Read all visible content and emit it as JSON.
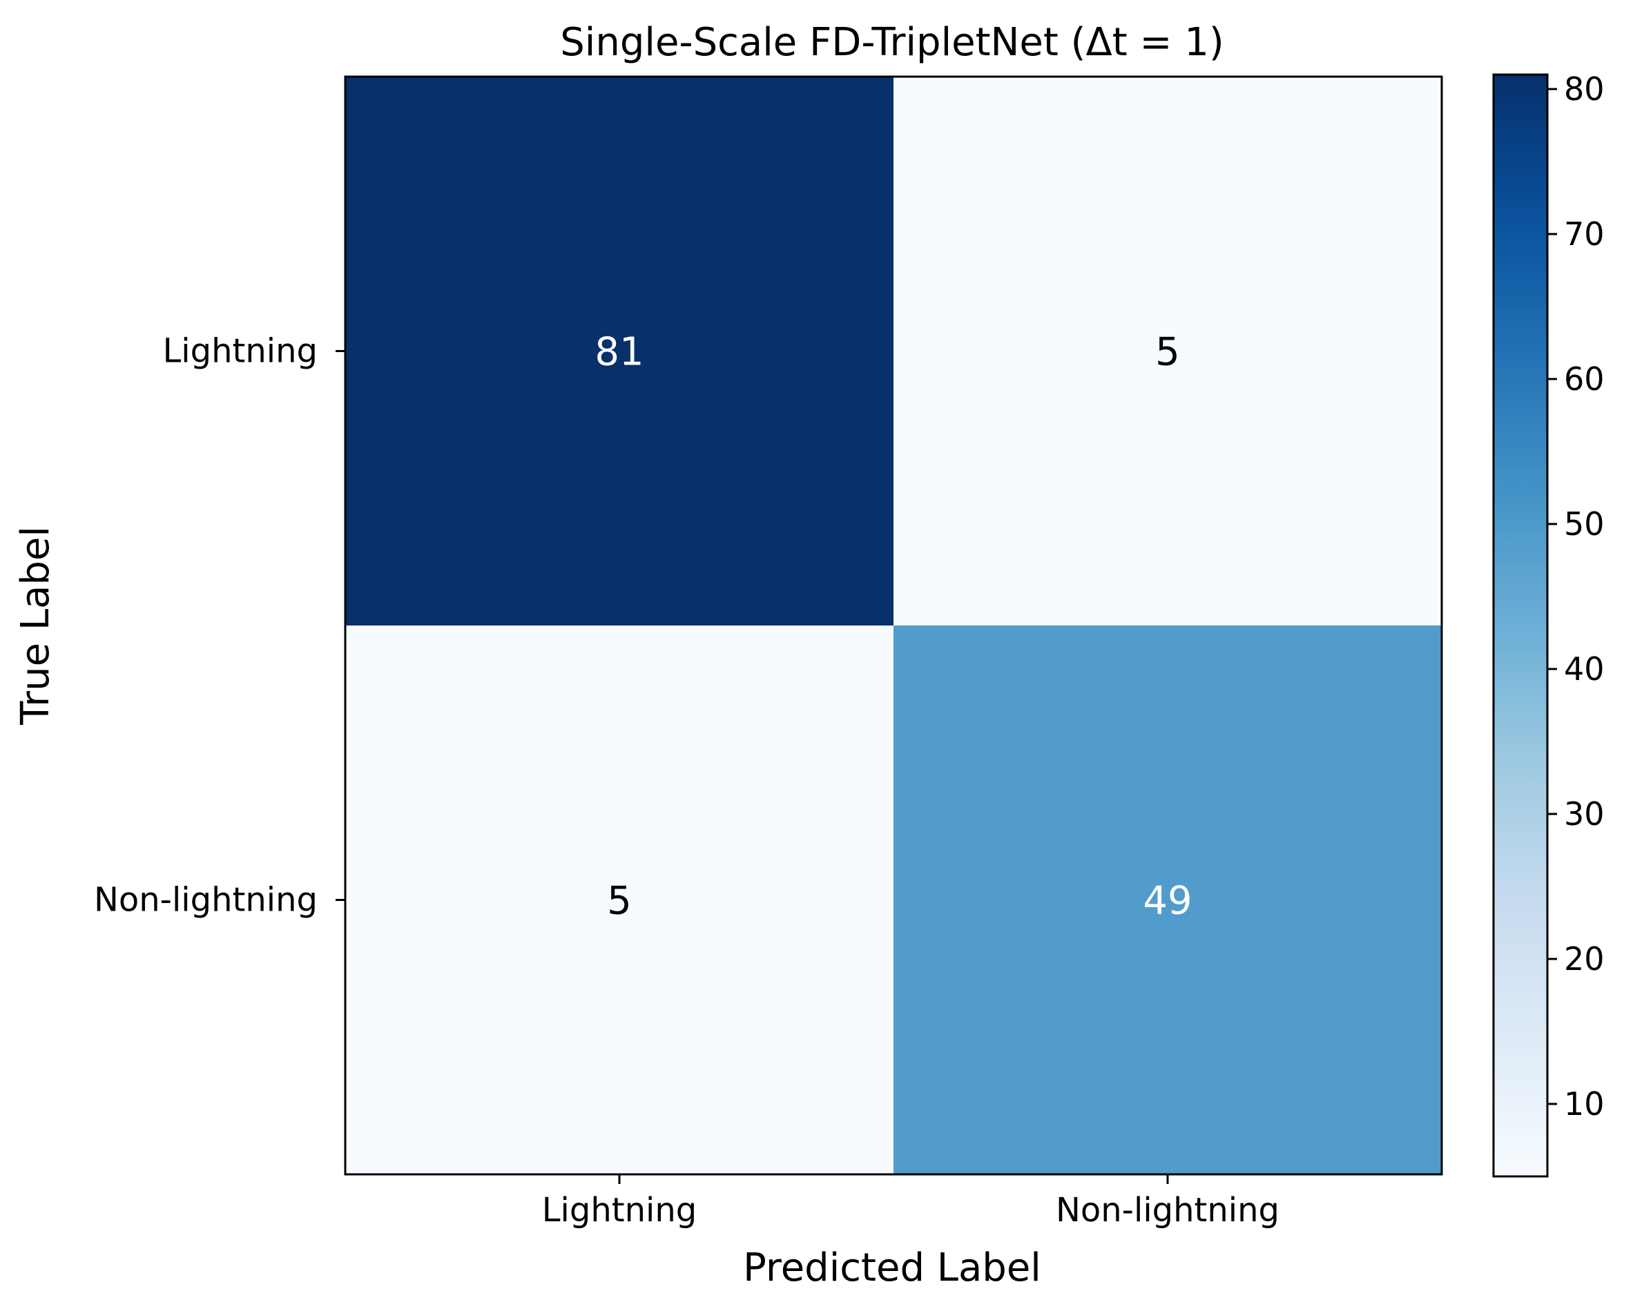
{
  "chart_data": {
    "type": "heatmap",
    "title": "Single-Scale FD-TripletNet (Δt = 1)",
    "xlabel": "Predicted Label",
    "ylabel": "True Label",
    "x_categories": [
      "Lightning",
      "Non-lightning"
    ],
    "y_categories": [
      "Lightning",
      "Non-lightning"
    ],
    "values": [
      [
        81,
        5
      ],
      [
        5,
        49
      ]
    ],
    "colormap": "Blues",
    "colors": {
      "low": "#f7fbff",
      "high": "#08306b",
      "text_on_dark": "#ffffff",
      "text_on_light": "#000000"
    },
    "colorbar": {
      "range": [
        5,
        81
      ],
      "ticks": [
        10,
        20,
        30,
        40,
        50,
        60,
        70,
        80
      ]
    },
    "grid": false
  }
}
